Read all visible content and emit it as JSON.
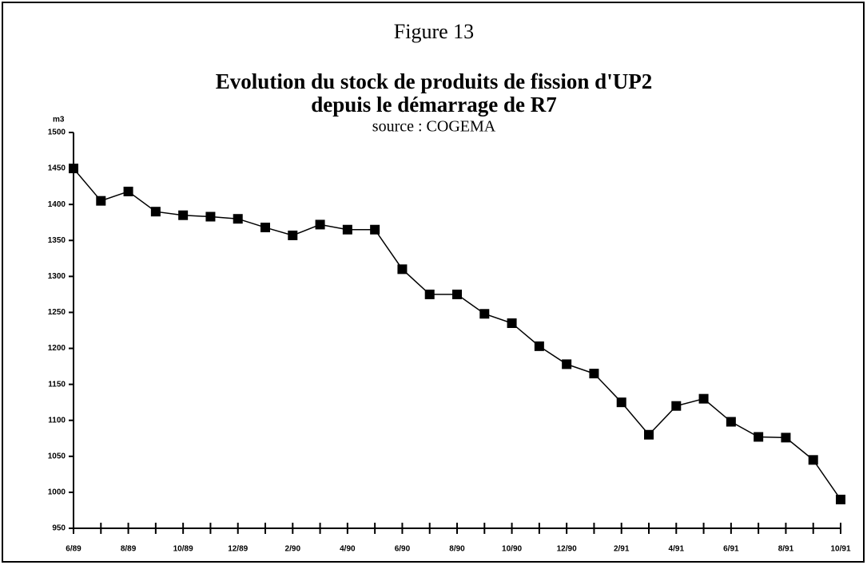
{
  "chart_data": {
    "type": "line",
    "figure_label": "Figure 13",
    "title": "Evolution du stock de produits de fission d'UP2",
    "subtitle": "depuis le démarrage de R7",
    "source": "source : COGEMA",
    "y_unit": "m3",
    "categories": [
      "6/89",
      null,
      "8/89",
      null,
      "10/89",
      null,
      "12/89",
      null,
      "2/90",
      null,
      "4/90",
      null,
      "6/90",
      null,
      "8/90",
      null,
      "10/90",
      null,
      "12/90",
      null,
      "2/91",
      null,
      "4/91",
      null,
      "6/91",
      null,
      "8/91",
      null,
      "10/91"
    ],
    "values": [
      1450,
      1405,
      1418,
      1390,
      1385,
      1383,
      1380,
      1368,
      1357,
      1372,
      1365,
      1365,
      1310,
      1275,
      1275,
      1248,
      1235,
      1203,
      1178,
      1165,
      1125,
      1080,
      1120,
      1130,
      1098,
      1077,
      1076,
      1045,
      990
    ],
    "color": "#000000",
    "ylim": [
      950,
      1500
    ],
    "yticks": [
      950,
      1000,
      1050,
      1100,
      1150,
      1200,
      1250,
      1300,
      1350,
      1400,
      1450,
      1500
    ]
  }
}
